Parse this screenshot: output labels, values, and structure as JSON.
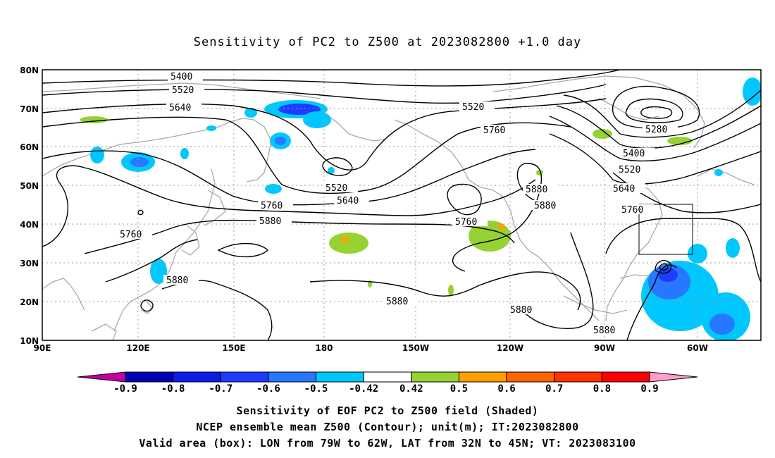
{
  "title": "Sensitivity of PC2 to Z500 at 2023082800 +1.0 day",
  "captions": {
    "line1": "Sensitivity of EOF PC2 to Z500 field (Shaded)",
    "line2": "NCEP ensemble mean Z500 (Contour); unit(m); IT:2023082800",
    "line3": "Valid area (box): LON from 79W to 62W, LAT from 32N to 45N; VT: 2023083100"
  },
  "lat_labels": [
    "80N",
    "70N",
    "60N",
    "50N",
    "40N",
    "30N",
    "20N",
    "10N"
  ],
  "lon_labels": [
    "90E",
    "120E",
    "150E",
    "180",
    "150W",
    "120W",
    "90W",
    "60W"
  ],
  "contour_labels": [
    "5400",
    "5520",
    "5640",
    "5520",
    "5760",
    "5280",
    "5400",
    "5520",
    "5640",
    "5760",
    "5520",
    "5640",
    "5760",
    "5880",
    "5880",
    "5880",
    "5760",
    "5760",
    "5880",
    "5880",
    "5880",
    "5880",
    "5880"
  ],
  "colorbar": {
    "labels": [
      "-0.9",
      "-0.8",
      "-0.7",
      "-0.6",
      "-0.5",
      "-0.42",
      "0.42",
      "0.5",
      "0.6",
      "0.7",
      "0.8",
      "0.9"
    ],
    "colors": [
      "#c000a0",
      "#0000b4",
      "#0a1ee6",
      "#1e3cff",
      "#2878ff",
      "#00c8ff",
      "#ffffff",
      "#96d232",
      "#ffa000",
      "#ff6400",
      "#ff3200",
      "#ff0000",
      "#ff9ec8"
    ]
  },
  "valid_box": {
    "lon_west": "79W",
    "lon_east": "62W",
    "lat_south": "32N",
    "lat_north": "45N"
  }
}
